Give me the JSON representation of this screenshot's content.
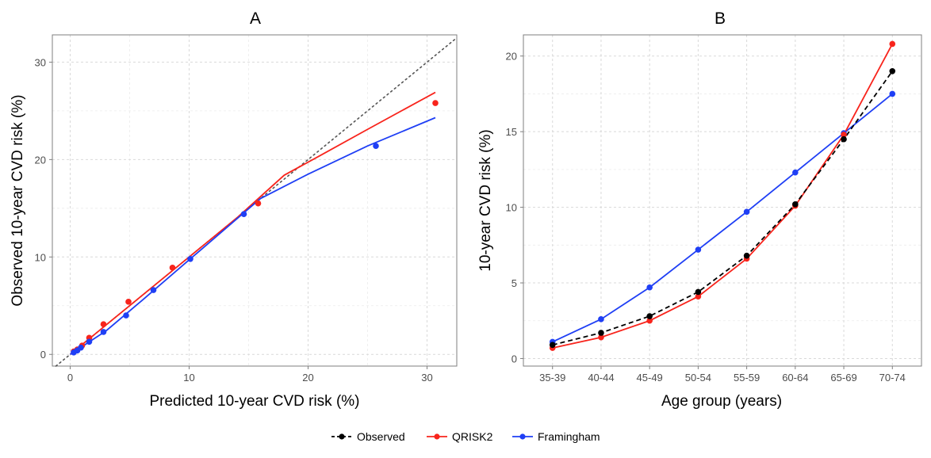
{
  "legend": [
    {
      "key": "observed",
      "label": "Observed",
      "color": "#000000",
      "dashed": true
    },
    {
      "key": "qrisk2",
      "label": "QRISK2",
      "color": "#f8241c",
      "dashed": false
    },
    {
      "key": "framingham",
      "label": "Framingham",
      "color": "#1f3ff5",
      "dashed": false
    }
  ],
  "chart_data": [
    {
      "panel": "A",
      "type": "scatter",
      "title": "A",
      "xlabel": "Predicted 10-year CVD risk (%)",
      "ylabel": "Observed 10-year CVD risk (%)",
      "xlim": [
        -1.5,
        32.5
      ],
      "ylim": [
        -1.2,
        32.8
      ],
      "xticks": [
        0,
        10,
        20,
        30
      ],
      "yticks": [
        0,
        10,
        20,
        30
      ],
      "grid": true,
      "reference_line": "y = x (dotted)",
      "series": [
        {
          "name": "QRISK2",
          "color": "#f8241c",
          "points": [
            [
              0.3,
              0.3
            ],
            [
              0.6,
              0.5
            ],
            [
              1.0,
              0.9
            ],
            [
              1.6,
              1.7
            ],
            [
              2.8,
              3.1
            ],
            [
              4.9,
              5.4
            ],
            [
              8.6,
              8.9
            ],
            [
              15.8,
              15.5
            ],
            [
              30.7,
              25.8
            ]
          ],
          "fit": [
            [
              0.0,
              0.0
            ],
            [
              3.0,
              3.0
            ],
            [
              6.0,
              6.0
            ],
            [
              10.0,
              10.0
            ],
            [
              14.0,
              14.0
            ],
            [
              16.0,
              16.2
            ],
            [
              18.0,
              18.4
            ],
            [
              21.0,
              20.4
            ],
            [
              25.0,
              23.1
            ],
            [
              30.7,
              26.9
            ]
          ]
        },
        {
          "name": "Framingham",
          "color": "#1f3ff5",
          "points": [
            [
              0.3,
              0.2
            ],
            [
              0.6,
              0.4
            ],
            [
              0.9,
              0.7
            ],
            [
              1.6,
              1.3
            ],
            [
              2.8,
              2.3
            ],
            [
              4.7,
              4.0
            ],
            [
              7.0,
              6.6
            ],
            [
              10.1,
              9.8
            ],
            [
              14.6,
              14.4
            ],
            [
              25.7,
              21.4
            ]
          ],
          "fit": [
            [
              0.0,
              0.0
            ],
            [
              3.0,
              2.4
            ],
            [
              6.0,
              5.5
            ],
            [
              10.0,
              9.7
            ],
            [
              14.0,
              13.9
            ],
            [
              16.0,
              16.0
            ],
            [
              20.0,
              18.5
            ],
            [
              25.0,
              21.4
            ],
            [
              30.7,
              24.3
            ]
          ]
        }
      ]
    },
    {
      "panel": "B",
      "type": "line",
      "title": "B",
      "xlabel": "Age group (years)",
      "ylabel": "10-year CVD risk (%)",
      "ylim": [
        -0.5,
        21.4
      ],
      "yticks": [
        0,
        5,
        10,
        15,
        20
      ],
      "grid": true,
      "categories": [
        "35-39",
        "40-44",
        "45-49",
        "50-54",
        "55-59",
        "60-64",
        "65-69",
        "70-74"
      ],
      "series": [
        {
          "name": "Framingham",
          "color": "#1f3ff5",
          "dashed": false,
          "values": [
            1.1,
            2.6,
            4.7,
            7.2,
            9.7,
            12.3,
            14.9,
            17.5
          ]
        },
        {
          "name": "QRISK2",
          "color": "#f8241c",
          "dashed": false,
          "values": [
            0.7,
            1.4,
            2.5,
            4.1,
            6.6,
            10.1,
            14.8,
            20.8
          ]
        },
        {
          "name": "Observed",
          "color": "#000000",
          "dashed": true,
          "values": [
            0.9,
            1.7,
            2.8,
            4.4,
            6.8,
            10.2,
            14.5,
            19.0
          ]
        }
      ]
    }
  ]
}
